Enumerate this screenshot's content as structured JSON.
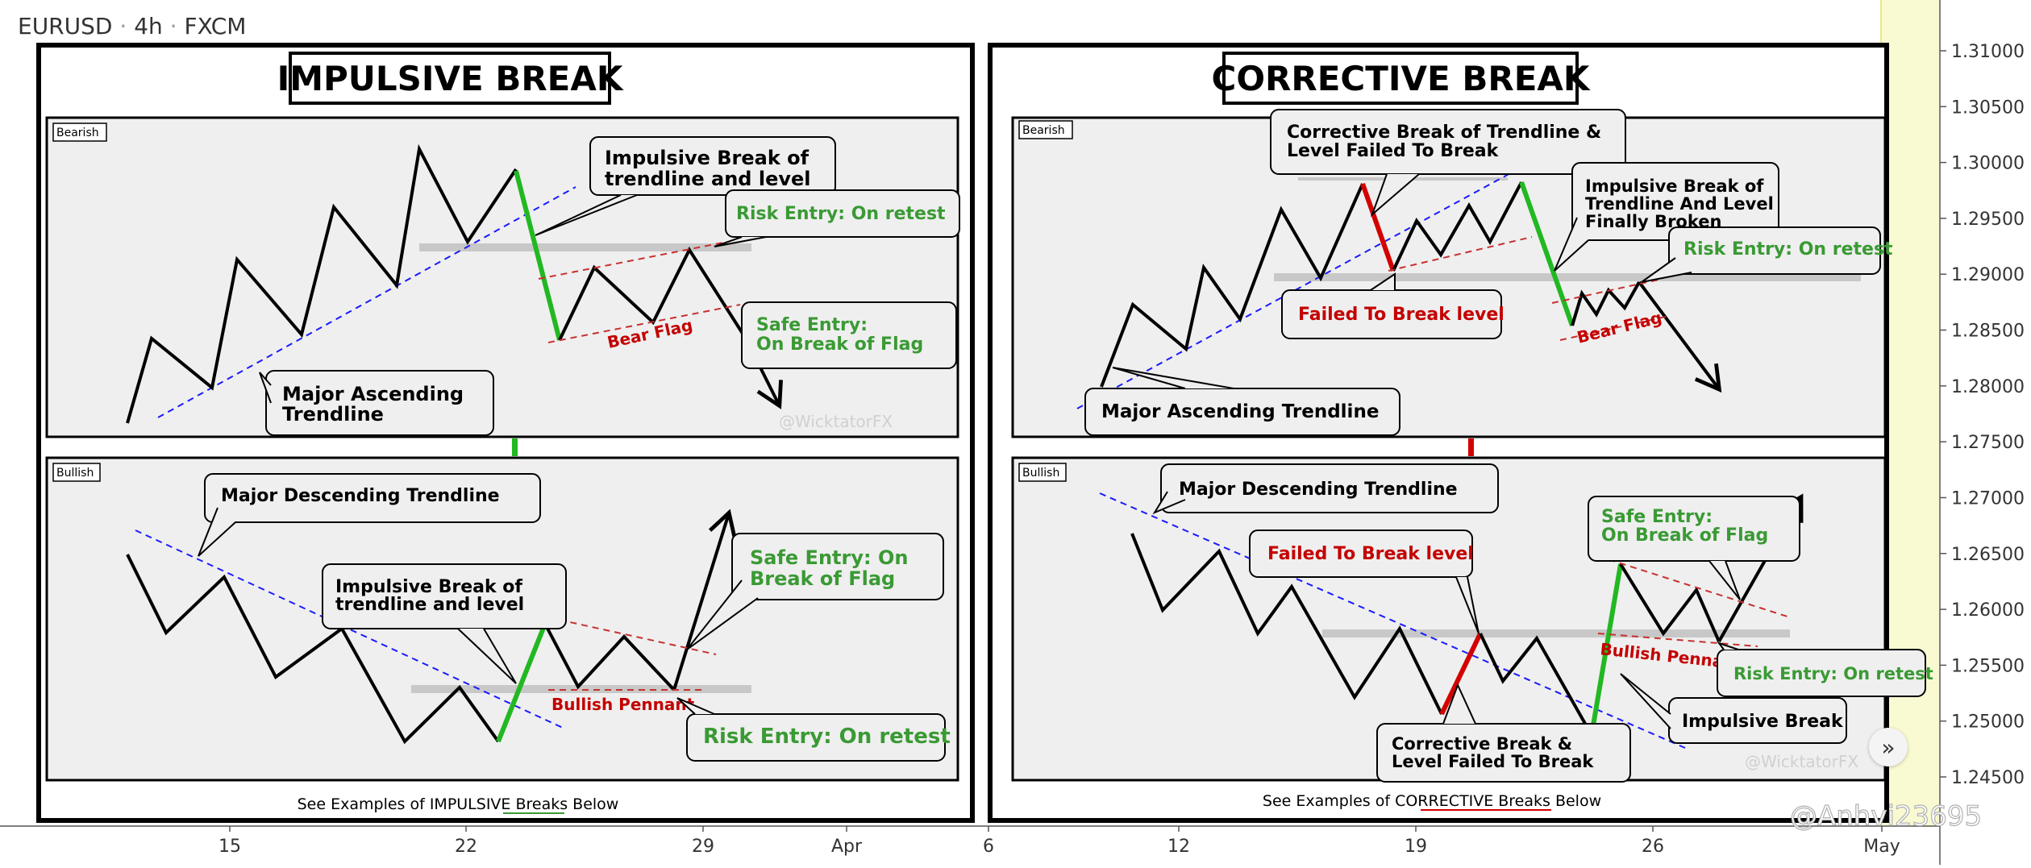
{
  "header": {
    "symbol": "EURUSD",
    "timeframe": "4h",
    "broker": "FXCM",
    "separator": "·"
  },
  "panels": {
    "left_title": "IMPULSIVE BREAK",
    "right_title": "CORRECTIVE BREAK",
    "bearish_tag": "Bearish",
    "bullish_tag": "Bullish",
    "watermark": "@WicktatorFX",
    "left_caption": "See Examples of IMPULSIVE Breaks Below",
    "right_caption": "See Examples of CORRECTIVE Breaks Below"
  },
  "annotations": {
    "l_bear_impulsive_1": "Impulsive Break of",
    "l_bear_impulsive_2": "trendline and level",
    "l_bear_risk": "Risk Entry: On retest",
    "l_bear_safe_1": "Safe Entry:",
    "l_bear_safe_2": "On Break of Flag",
    "l_bear_flag": "Bear Flag",
    "l_bear_major_1": "Major Ascending",
    "l_bear_major_2": "Trendline",
    "l_bull_major": "Major Descending Trendline",
    "l_bull_impulsive_1": "Impulsive Break of",
    "l_bull_impulsive_2": "trendline and level",
    "l_bull_safe_1": "Safe Entry: On",
    "l_bull_safe_2": "Break of Flag",
    "l_bull_pennant": "Bullish Pennant",
    "l_bull_risk": "Risk Entry: On retest",
    "r_bear_corrective_1": "Corrective Break of Trendline &",
    "r_bear_corrective_2": "Level Failed To Break",
    "r_bear_impulsive_1": "Impulsive Break of",
    "r_bear_impulsive_2": "Trendline And Level",
    "r_bear_impulsive_3": "Finally Broken",
    "r_bear_risk": "Risk Entry: On retest",
    "r_bear_failed": "Failed To Break level",
    "r_bear_flag": "Bear Flag",
    "r_bear_major": "Major Ascending Trendline",
    "r_bull_major": "Major Descending Trendline",
    "r_bull_failed": "Failed To Break level",
    "r_bull_safe_1": "Safe Entry:",
    "r_bull_safe_2": "On Break of Flag",
    "r_bull_pennant": "Bullish Pennant",
    "r_bull_risk": "Risk Entry: On retest",
    "r_bull_impulsive": "Impulsive Break",
    "r_bull_corrective_1": "Corrective Break &",
    "r_bull_corrective_2": "Level Failed To Break"
  },
  "bottom_watermark": "@Anhvi23695",
  "colors": {
    "green": "#22b822",
    "red": "#d40000",
    "green_text": "#3a9a34",
    "red_text": "#c40000",
    "blue_trend": "#1a1aff",
    "level": "#c8c8c8",
    "panel_bg": "#efefef",
    "highlight": "#fafad2"
  },
  "chart_data": {
    "type": "line",
    "y_axis": {
      "side": "right",
      "ticks": [
        "1.31000",
        "1.30500",
        "1.30000",
        "1.29500",
        "1.29000",
        "1.28500",
        "1.28000",
        "1.27500",
        "1.27000",
        "1.26500",
        "1.26000",
        "1.25500",
        "1.25000",
        "1.24500"
      ],
      "ylim": [
        1.2425,
        1.3115
      ]
    },
    "x_axis": {
      "ticks": [
        "15",
        "22",
        "29",
        "Apr",
        "6",
        "12",
        "19",
        "26",
        "May"
      ]
    }
  }
}
